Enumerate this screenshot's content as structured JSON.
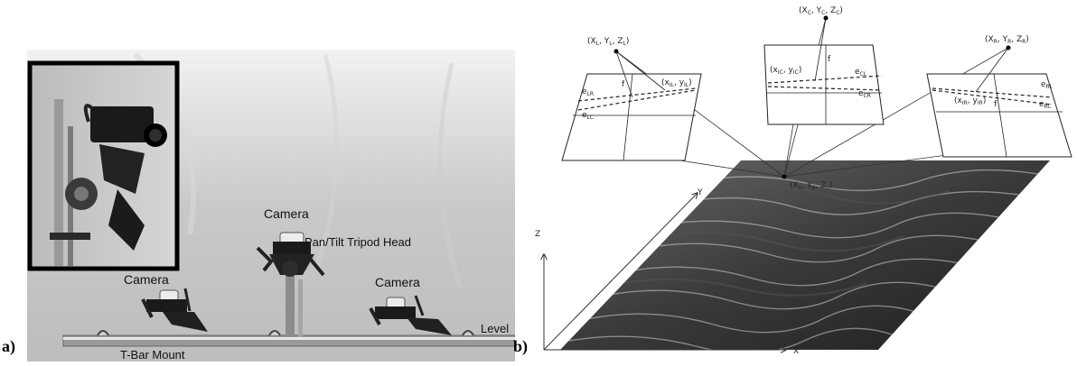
{
  "panel_a": {
    "letter": "a)",
    "labels": {
      "camera_top": "Camera",
      "tripod_head": "Pan/Tilt Tripod Head",
      "camera_left": "Camera",
      "camera_right": "Camera",
      "level": "Level",
      "tbar_mount": "T-Bar Mount"
    }
  },
  "panel_b": {
    "letter": "b)",
    "point_left": "(X",
    "point_center": "(X",
    "point_right": "(X",
    "point_ground": "(X",
    "axis_x": "X",
    "axis_y": "Y",
    "axis_z": "Z",
    "focal": "f"
  }
}
